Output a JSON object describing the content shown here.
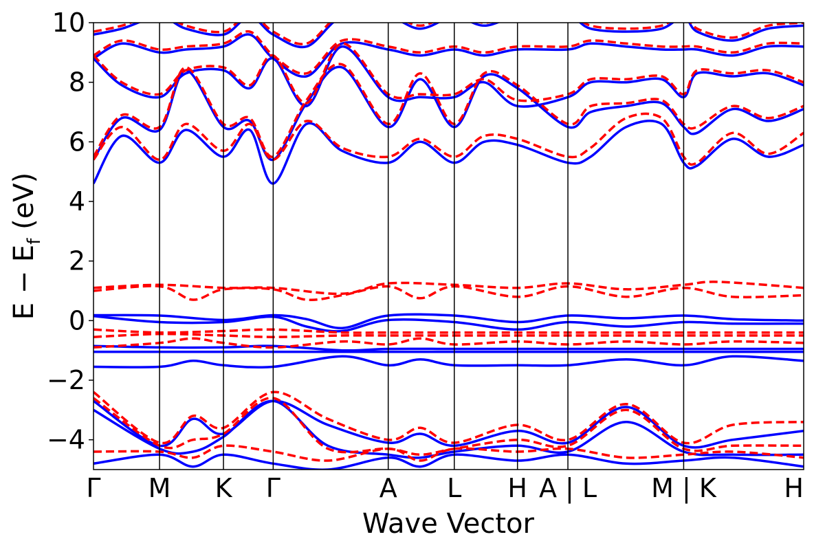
{
  "chart_data": {
    "type": "line",
    "xlabel": "Wave Vector",
    "ylabel": "E − E_f (eV)",
    "ylabel_main": "E − E",
    "ylabel_sub": "f",
    "ylabel_unit": " (eV)",
    "ylim": [
      -5,
      10
    ],
    "yticks": [
      -4,
      -2,
      0,
      2,
      4,
      6,
      8,
      10
    ],
    "ytick_labels": [
      "−4",
      "−2",
      "0",
      "2",
      "4",
      "6",
      "8",
      "10"
    ],
    "xlim": [
      0,
      1
    ],
    "kpoints": [
      {
        "label": "Γ",
        "x": 0.0
      },
      {
        "label": "M",
        "x": 0.093
      },
      {
        "label": "K",
        "x": 0.183
      },
      {
        "label": "Γ",
        "x": 0.253
      },
      {
        "label": "A",
        "x": 0.415
      },
      {
        "label": "L",
        "x": 0.508
      },
      {
        "label": "H",
        "x": 0.597
      },
      {
        "label": "A | L",
        "x": 0.668
      },
      {
        "label": "M | K",
        "x": 0.831
      },
      {
        "label": "H",
        "x": 1.0
      }
    ],
    "grid": false,
    "colors": {
      "blue": "#0000ff",
      "red": "#ff0000"
    },
    "series": [
      {
        "color": "blue",
        "style": "solid",
        "x": [
          0,
          0.093,
          0.183,
          0.253,
          0.3,
          0.35,
          0.415,
          0.508,
          0.597,
          0.668,
          0.75,
          0.831,
          0.9,
          1.0
        ],
        "values": [
          0.18,
          0.17,
          0.02,
          0.18,
          0.05,
          -0.25,
          0.17,
          0.17,
          -0.05,
          0.17,
          0.08,
          0.17,
          0.05,
          0.0
        ]
      },
      {
        "color": "blue",
        "style": "solid",
        "x": [
          0,
          0.093,
          0.183,
          0.253,
          0.3,
          0.35,
          0.415,
          0.508,
          0.597,
          0.668,
          0.75,
          0.831,
          0.9,
          1.0
        ],
        "values": [
          0.15,
          -0.05,
          -0.05,
          0.13,
          -0.2,
          -0.35,
          0.02,
          -0.05,
          -0.3,
          -0.05,
          -0.2,
          -0.05,
          -0.1,
          -0.1
        ]
      },
      {
        "color": "blue",
        "style": "solid",
        "x": [
          0,
          0.093,
          0.183,
          0.253,
          0.35,
          0.415,
          0.508,
          0.597,
          0.668,
          0.75,
          0.831,
          1.0
        ],
        "values": [
          -0.85,
          -0.9,
          -0.9,
          -0.85,
          -1.0,
          -0.95,
          -0.95,
          -0.95,
          -0.95,
          -0.95,
          -0.95,
          -0.95
        ]
      },
      {
        "color": "blue",
        "style": "solid",
        "x": [
          0,
          0.093,
          0.183,
          0.253,
          0.35,
          0.415,
          0.508,
          0.597,
          0.668,
          0.75,
          0.831,
          1.0
        ],
        "values": [
          -1.05,
          -1.05,
          -1.05,
          -1.05,
          -1.05,
          -1.05,
          -1.05,
          -1.05,
          -1.05,
          -1.05,
          -1.05,
          -1.05
        ]
      },
      {
        "color": "blue",
        "style": "solid",
        "x": [
          0,
          0.093,
          0.14,
          0.183,
          0.253,
          0.35,
          0.415,
          0.46,
          0.508,
          0.597,
          0.668,
          0.75,
          0.831,
          0.9,
          1.0
        ],
        "values": [
          -1.55,
          -1.55,
          -1.35,
          -1.5,
          -1.55,
          -1.2,
          -1.5,
          -1.3,
          -1.5,
          -1.5,
          -1.5,
          -1.3,
          -1.5,
          -1.2,
          -1.35
        ]
      },
      {
        "color": "red",
        "style": "dashed",
        "x": [
          0,
          0.093,
          0.183,
          0.253,
          0.35,
          0.415,
          0.508,
          0.597,
          0.668,
          0.75,
          0.831,
          0.88,
          1.0
        ],
        "values": [
          1.1,
          1.2,
          1.1,
          1.1,
          0.9,
          1.25,
          1.2,
          1.1,
          1.25,
          1.05,
          1.2,
          1.3,
          1.1
        ]
      },
      {
        "color": "red",
        "style": "dashed",
        "x": [
          0,
          0.093,
          0.14,
          0.183,
          0.253,
          0.3,
          0.35,
          0.415,
          0.46,
          0.508,
          0.597,
          0.668,
          0.75,
          0.831,
          0.9,
          1.0
        ],
        "values": [
          1.0,
          1.15,
          0.7,
          1.05,
          1.05,
          0.7,
          0.85,
          1.15,
          0.75,
          1.15,
          0.8,
          1.15,
          0.8,
          1.1,
          0.8,
          0.85
        ]
      },
      {
        "color": "red",
        "style": "dashed",
        "x": [
          0,
          0.093,
          0.183,
          0.253,
          0.35,
          0.415,
          0.508,
          0.597,
          0.668,
          0.75,
          0.831,
          1.0
        ],
        "values": [
          -0.3,
          -0.4,
          -0.35,
          -0.3,
          -0.4,
          -0.4,
          -0.4,
          -0.4,
          -0.4,
          -0.4,
          -0.4,
          -0.4
        ]
      },
      {
        "color": "red",
        "style": "dashed",
        "x": [
          0,
          0.093,
          0.183,
          0.253,
          0.35,
          0.415,
          0.508,
          0.597,
          0.668,
          0.75,
          0.831,
          1.0
        ],
        "values": [
          -0.55,
          -0.45,
          -0.5,
          -0.55,
          -0.5,
          -0.5,
          -0.5,
          -0.5,
          -0.5,
          -0.5,
          -0.5,
          -0.5
        ]
      },
      {
        "color": "red",
        "style": "dashed",
        "x": [
          0,
          0.093,
          0.14,
          0.183,
          0.253,
          0.35,
          0.415,
          0.46,
          0.508,
          0.597,
          0.668,
          0.75,
          0.831,
          0.9,
          1.0
        ],
        "values": [
          -0.9,
          -0.75,
          -0.6,
          -0.75,
          -0.9,
          -0.7,
          -0.8,
          -0.6,
          -0.8,
          -0.7,
          -0.8,
          -0.7,
          -0.8,
          -0.7,
          -0.75
        ]
      },
      {
        "color": "blue",
        "style": "solid",
        "x": [
          0,
          0.04,
          0.093,
          0.13,
          0.183,
          0.22,
          0.253,
          0.3,
          0.35,
          0.415,
          0.46,
          0.508,
          0.55,
          0.597,
          0.668,
          0.7,
          0.75,
          0.8,
          0.831,
          0.85,
          0.9,
          0.95,
          1.0
        ],
        "values": [
          4.6,
          6.2,
          5.3,
          6.4,
          5.5,
          6.4,
          4.6,
          6.6,
          5.7,
          5.3,
          6.0,
          5.3,
          6.0,
          5.9,
          5.3,
          5.5,
          6.5,
          6.6,
          5.3,
          5.2,
          6.1,
          5.5,
          5.9
        ]
      },
      {
        "color": "red",
        "style": "dashed",
        "x": [
          0,
          0.04,
          0.093,
          0.13,
          0.183,
          0.22,
          0.253,
          0.3,
          0.35,
          0.415,
          0.46,
          0.508,
          0.55,
          0.597,
          0.668,
          0.7,
          0.75,
          0.8,
          0.831,
          0.85,
          0.9,
          0.95,
          1.0
        ],
        "values": [
          5.4,
          6.5,
          5.4,
          6.6,
          5.7,
          6.6,
          5.4,
          6.7,
          5.8,
          5.5,
          6.1,
          5.5,
          6.2,
          6.1,
          5.5,
          5.8,
          6.8,
          6.8,
          5.5,
          5.3,
          6.3,
          5.6,
          6.3
        ]
      },
      {
        "color": "blue",
        "style": "solid",
        "x": [
          0,
          0.04,
          0.093,
          0.13,
          0.183,
          0.22,
          0.253,
          0.3,
          0.35,
          0.415,
          0.46,
          0.508,
          0.55,
          0.597,
          0.668,
          0.7,
          0.75,
          0.8,
          0.831,
          0.85,
          0.9,
          0.95,
          1.0
        ],
        "values": [
          5.4,
          6.8,
          6.4,
          8.4,
          6.5,
          6.7,
          5.4,
          7.3,
          8.5,
          6.5,
          8.1,
          6.5,
          8.2,
          7.8,
          6.5,
          7.0,
          7.2,
          7.3,
          6.5,
          6.3,
          7.1,
          6.7,
          7.1
        ]
      },
      {
        "color": "red",
        "style": "dashed",
        "x": [
          0,
          0.04,
          0.093,
          0.13,
          0.183,
          0.22,
          0.253,
          0.3,
          0.35,
          0.415,
          0.46,
          0.508,
          0.55,
          0.597,
          0.668,
          0.7,
          0.75,
          0.8,
          0.831,
          0.85,
          0.9,
          0.95,
          1.0
        ],
        "values": [
          5.5,
          6.9,
          6.5,
          8.5,
          6.6,
          6.8,
          5.5,
          7.4,
          8.6,
          6.6,
          8.3,
          6.6,
          8.3,
          7.9,
          6.6,
          7.2,
          7.3,
          7.4,
          6.6,
          6.5,
          7.2,
          6.8,
          7.2
        ]
      },
      {
        "color": "blue",
        "style": "solid",
        "x": [
          0,
          0.04,
          0.093,
          0.13,
          0.183,
          0.22,
          0.253,
          0.3,
          0.35,
          0.415,
          0.46,
          0.508,
          0.55,
          0.597,
          0.668,
          0.7,
          0.75,
          0.8,
          0.831,
          0.85,
          0.9,
          0.95,
          1.0
        ],
        "values": [
          8.8,
          7.9,
          7.5,
          8.3,
          8.4,
          7.8,
          8.8,
          7.2,
          9.2,
          7.5,
          7.5,
          7.5,
          8.0,
          7.2,
          7.5,
          8.0,
          8.0,
          8.1,
          7.5,
          8.3,
          8.2,
          8.3,
          7.9
        ]
      },
      {
        "color": "red",
        "style": "dashed",
        "x": [
          0,
          0.04,
          0.093,
          0.13,
          0.183,
          0.22,
          0.253,
          0.3,
          0.35,
          0.415,
          0.46,
          0.508,
          0.55,
          0.597,
          0.668,
          0.7,
          0.75,
          0.8,
          0.831,
          0.85,
          0.9,
          0.95,
          1.0
        ],
        "values": [
          8.9,
          8.0,
          7.6,
          8.4,
          8.5,
          7.9,
          8.9,
          7.3,
          9.3,
          7.6,
          7.6,
          7.6,
          8.1,
          7.4,
          7.6,
          8.1,
          8.1,
          8.2,
          7.6,
          8.4,
          8.3,
          8.4,
          8.0
        ]
      },
      {
        "color": "blue",
        "style": "solid",
        "x": [
          0,
          0.04,
          0.093,
          0.13,
          0.183,
          0.22,
          0.253,
          0.3,
          0.35,
          0.415,
          0.46,
          0.508,
          0.55,
          0.597,
          0.668,
          0.7,
          0.75,
          0.8,
          0.831,
          0.85,
          0.9,
          0.95,
          1.0
        ],
        "values": [
          8.8,
          9.3,
          9.0,
          9.1,
          9.2,
          9.6,
          8.8,
          8.2,
          9.3,
          9.1,
          8.9,
          9.1,
          8.9,
          9.1,
          9.1,
          9.3,
          9.2,
          9.1,
          9.1,
          9.1,
          8.9,
          9.2,
          9.2
        ]
      },
      {
        "color": "red",
        "style": "dashed",
        "x": [
          0,
          0.04,
          0.093,
          0.13,
          0.183,
          0.22,
          0.253,
          0.3,
          0.35,
          0.415,
          0.46,
          0.508,
          0.55,
          0.597,
          0.668,
          0.7,
          0.75,
          0.8,
          0.831,
          0.85,
          0.9,
          0.95,
          1.0
        ],
        "values": [
          8.9,
          9.4,
          9.1,
          9.2,
          9.3,
          9.7,
          8.9,
          8.3,
          9.4,
          9.2,
          9.0,
          9.2,
          9.0,
          9.2,
          9.2,
          9.4,
          9.3,
          9.2,
          9.2,
          9.2,
          9.0,
          9.3,
          9.3
        ]
      },
      {
        "color": "blue",
        "style": "solid",
        "x": [
          0,
          0.04,
          0.093,
          0.13,
          0.183,
          0.22,
          0.253,
          0.3,
          0.35,
          0.415,
          0.46,
          0.508,
          0.55,
          0.597,
          0.668,
          0.7,
          0.75,
          0.8,
          0.831,
          0.85,
          0.9,
          0.95,
          1.0
        ],
        "values": [
          9.6,
          9.8,
          10.2,
          9.8,
          9.6,
          10.2,
          9.6,
          9.2,
          10.2,
          10.2,
          9.8,
          10.2,
          9.9,
          10.2,
          10.2,
          9.8,
          9.7,
          9.8,
          10.2,
          9.7,
          9.4,
          9.8,
          9.9
        ]
      },
      {
        "color": "red",
        "style": "dashed",
        "x": [
          0,
          0.04,
          0.093,
          0.13,
          0.183,
          0.22,
          0.253,
          0.3,
          0.35,
          0.415,
          0.46,
          0.508,
          0.55,
          0.597,
          0.668,
          0.7,
          0.75,
          0.8,
          0.831,
          0.85,
          0.9,
          0.95,
          1.0
        ],
        "values": [
          9.7,
          9.9,
          10.3,
          9.9,
          9.7,
          10.3,
          9.7,
          9.3,
          10.3,
          10.3,
          9.9,
          10.3,
          10.0,
          10.3,
          10.3,
          9.9,
          9.8,
          9.9,
          10.3,
          9.8,
          9.5,
          9.9,
          10.0
        ]
      },
      {
        "color": "blue",
        "style": "solid",
        "x": [
          0,
          0.093,
          0.14,
          0.183,
          0.253,
          0.33,
          0.415,
          0.46,
          0.508,
          0.597,
          0.668,
          0.75,
          0.831,
          0.9,
          1.0
        ],
        "values": [
          -2.7,
          -4.2,
          -3.3,
          -3.8,
          -2.7,
          -3.5,
          -4.1,
          -3.8,
          -4.2,
          -3.7,
          -4.1,
          -2.9,
          -4.2,
          -4.0,
          -3.7
        ]
      },
      {
        "color": "red",
        "style": "dashed",
        "x": [
          0,
          0.093,
          0.14,
          0.183,
          0.253,
          0.33,
          0.415,
          0.46,
          0.508,
          0.597,
          0.668,
          0.75,
          0.831,
          0.9,
          1.0
        ],
        "values": [
          -2.4,
          -4.1,
          -3.2,
          -3.6,
          -2.4,
          -3.3,
          -4.0,
          -3.6,
          -4.1,
          -3.5,
          -4.0,
          -2.8,
          -4.1,
          -3.5,
          -3.4
        ]
      },
      {
        "color": "blue",
        "style": "solid",
        "x": [
          0,
          0.093,
          0.14,
          0.183,
          0.253,
          0.33,
          0.415,
          0.46,
          0.508,
          0.597,
          0.668,
          0.75,
          0.831,
          0.9,
          1.0
        ],
        "values": [
          -3.0,
          -4.3,
          -4.4,
          -3.9,
          -2.7,
          -4.2,
          -4.5,
          -4.6,
          -4.4,
          -4.2,
          -4.4,
          -3.4,
          -4.4,
          -4.5,
          -4.5
        ]
      },
      {
        "color": "red",
        "style": "dashed",
        "x": [
          0,
          0.093,
          0.14,
          0.183,
          0.253,
          0.33,
          0.415,
          0.46,
          0.508,
          0.597,
          0.668,
          0.75,
          0.831,
          0.9,
          1.0
        ],
        "values": [
          -2.6,
          -4.2,
          -4.0,
          -3.8,
          -2.6,
          -4.3,
          -4.3,
          -4.5,
          -4.3,
          -4.0,
          -4.2,
          -3.0,
          -4.3,
          -4.2,
          -4.2
        ]
      },
      {
        "color": "blue",
        "style": "solid",
        "x": [
          0,
          0.093,
          0.14,
          0.183,
          0.253,
          0.33,
          0.415,
          0.46,
          0.508,
          0.597,
          0.668,
          0.75,
          0.831,
          0.9,
          1.0
        ],
        "values": [
          -4.8,
          -4.5,
          -4.9,
          -4.5,
          -4.8,
          -5.0,
          -4.6,
          -4.9,
          -4.5,
          -4.7,
          -4.5,
          -4.8,
          -4.7,
          -4.6,
          -4.9
        ]
      },
      {
        "color": "red",
        "style": "dashed",
        "x": [
          0,
          0.093,
          0.14,
          0.183,
          0.253,
          0.33,
          0.415,
          0.46,
          0.508,
          0.597,
          0.668,
          0.75,
          0.831,
          0.9,
          1.0
        ],
        "values": [
          -4.4,
          -4.4,
          -4.6,
          -4.2,
          -4.4,
          -4.7,
          -4.3,
          -4.7,
          -4.3,
          -4.4,
          -4.3,
          -4.6,
          -4.5,
          -4.4,
          -4.6
        ]
      }
    ]
  }
}
